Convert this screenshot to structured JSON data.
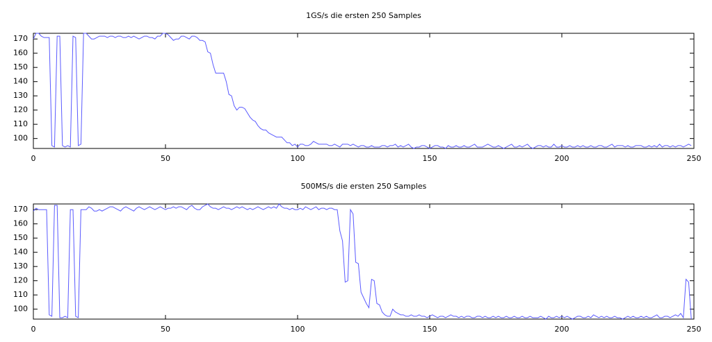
{
  "chart_data": [
    {
      "type": "line",
      "title": "1GS/s die ersten 250 Samples",
      "color": "#5a5aff",
      "xlim": [
        0,
        250
      ],
      "xticks": [
        0,
        50,
        100,
        150,
        200,
        250
      ],
      "ylim": [
        93,
        174
      ],
      "yticks": [
        100,
        110,
        120,
        130,
        140,
        150,
        160,
        170
      ],
      "x": [
        0,
        1,
        2,
        3,
        4,
        5,
        6,
        7,
        8,
        9,
        10,
        11,
        12,
        13,
        14,
        15,
        16,
        17,
        18,
        19,
        20,
        21,
        22,
        23,
        24,
        25,
        26,
        27,
        28,
        29,
        30,
        31,
        32,
        33,
        34,
        35,
        36,
        37,
        38,
        39,
        40,
        41,
        42,
        43,
        44,
        45,
        46,
        47,
        48,
        49,
        50,
        51,
        52,
        53,
        54,
        55,
        56,
        57,
        58,
        59,
        60,
        61,
        62,
        63,
        64,
        65,
        66,
        67,
        68,
        69,
        70,
        71,
        72,
        73,
        74,
        75,
        76,
        77,
        78,
        79,
        80,
        81,
        82,
        83,
        84,
        85,
        86,
        87,
        88,
        89,
        90,
        91,
        92,
        93,
        94,
        95,
        96,
        97,
        98,
        99,
        100,
        101,
        102,
        103,
        104,
        105,
        106,
        107,
        108,
        109,
        110,
        111,
        112,
        113,
        114,
        115,
        116,
        117,
        118,
        119,
        120,
        121,
        122,
        123,
        124,
        125,
        126,
        127,
        128,
        129,
        130,
        131,
        132,
        133,
        134,
        135,
        136,
        137,
        138,
        139,
        140,
        141,
        142,
        143,
        144,
        145,
        146,
        147,
        148,
        149,
        150,
        151,
        152,
        153,
        154,
        155,
        156,
        157,
        158,
        159,
        160,
        161,
        162,
        163,
        164,
        165,
        166,
        167,
        168,
        169,
        170,
        171,
        172,
        173,
        174,
        175,
        176,
        177,
        178,
        179,
        180,
        181,
        182,
        183,
        184,
        185,
        186,
        187,
        188,
        189,
        190,
        191,
        192,
        193,
        194,
        195,
        196,
        197,
        198,
        199,
        200,
        201,
        202,
        203,
        204,
        205,
        206,
        207,
        208,
        209,
        210,
        211,
        212,
        213,
        214,
        215,
        216,
        217,
        218,
        219,
        220,
        221,
        222,
        223,
        224,
        225,
        226,
        227,
        228,
        229,
        230,
        231,
        232,
        233,
        234,
        235,
        236,
        237,
        238,
        239,
        240,
        241,
        242,
        243,
        244,
        245,
        246,
        247,
        248,
        249
      ],
      "values": [
        170,
        174,
        174,
        172,
        171,
        171,
        171,
        95,
        94,
        172,
        172,
        95,
        94,
        95,
        94,
        172,
        171,
        95,
        96,
        174,
        174,
        172,
        170,
        170,
        171,
        172,
        172,
        172,
        171,
        172,
        172,
        171,
        172,
        172,
        171,
        171,
        172,
        171,
        172,
        171,
        170,
        171,
        172,
        172,
        171,
        171,
        170,
        172,
        172,
        174,
        174,
        173,
        171,
        169,
        170,
        170,
        172,
        172,
        171,
        170,
        172,
        172,
        171,
        169,
        169,
        168,
        161,
        160,
        152,
        146,
        146,
        146,
        146,
        140,
        131,
        130,
        123,
        120,
        122,
        122,
        121,
        118,
        115,
        113,
        112,
        109,
        107,
        106,
        106,
        104,
        103,
        102,
        101,
        101,
        101,
        99,
        97,
        97,
        95,
        96,
        94,
        96,
        96,
        95,
        95,
        96,
        98,
        97,
        96,
        96,
        96,
        96,
        95,
        95,
        96,
        95,
        94,
        96,
        96,
        96,
        95,
        96,
        95,
        94,
        95,
        95,
        94,
        94,
        95,
        94,
        94,
        94,
        95,
        95,
        94,
        95,
        95,
        96,
        94,
        95,
        94,
        95,
        96,
        94,
        93,
        94,
        94,
        95,
        95,
        94,
        93,
        94,
        95,
        95,
        94,
        94,
        93,
        95,
        94,
        94,
        95,
        94,
        94,
        95,
        94,
        94,
        95,
        96,
        94,
        94,
        94,
        95,
        96,
        95,
        94,
        94,
        95,
        94,
        93,
        94,
        95,
        96,
        94,
        94,
        95,
        94,
        95,
        96,
        94,
        93,
        94,
        95,
        95,
        94,
        95,
        94,
        94,
        96,
        94,
        94,
        95,
        94,
        94,
        95,
        94,
        94,
        95,
        94,
        95,
        94,
        94,
        95,
        94,
        94,
        95,
        95,
        94,
        94,
        95,
        96,
        94,
        95,
        95,
        95,
        94,
        95,
        94,
        94,
        95,
        95,
        95,
        94,
        94,
        95,
        94,
        95,
        94,
        96,
        94,
        95,
        95,
        94,
        95,
        94,
        95,
        95,
        94,
        95,
        96,
        95
      ]
    },
    {
      "type": "line",
      "title": "500MS/s die ersten 250 Samples",
      "color": "#5a5aff",
      "xlim": [
        0,
        250
      ],
      "xticks": [
        0,
        50,
        100,
        150,
        200,
        250
      ],
      "ylim": [
        93,
        174
      ],
      "yticks": [
        100,
        110,
        120,
        130,
        140,
        150,
        160,
        170
      ],
      "x": [
        0,
        1,
        2,
        3,
        4,
        5,
        6,
        7,
        8,
        9,
        10,
        11,
        12,
        13,
        14,
        15,
        16,
        17,
        18,
        19,
        20,
        21,
        22,
        23,
        24,
        25,
        26,
        27,
        28,
        29,
        30,
        31,
        32,
        33,
        34,
        35,
        36,
        37,
        38,
        39,
        40,
        41,
        42,
        43,
        44,
        45,
        46,
        47,
        48,
        49,
        50,
        51,
        52,
        53,
        54,
        55,
        56,
        57,
        58,
        59,
        60,
        61,
        62,
        63,
        64,
        65,
        66,
        67,
        68,
        69,
        70,
        71,
        72,
        73,
        74,
        75,
        76,
        77,
        78,
        79,
        80,
        81,
        82,
        83,
        84,
        85,
        86,
        87,
        88,
        89,
        90,
        91,
        92,
        93,
        94,
        95,
        96,
        97,
        98,
        99,
        100,
        101,
        102,
        103,
        104,
        105,
        106,
        107,
        108,
        109,
        110,
        111,
        112,
        113,
        114,
        115,
        116,
        117,
        118,
        119,
        120,
        121,
        122,
        123,
        124,
        125,
        126,
        127,
        128,
        129,
        130,
        131,
        132,
        133,
        134,
        135,
        136,
        137,
        138,
        139,
        140,
        141,
        142,
        143,
        144,
        145,
        146,
        147,
        148,
        149,
        150,
        151,
        152,
        153,
        154,
        155,
        156,
        157,
        158,
        159,
        160,
        161,
        162,
        163,
        164,
        165,
        166,
        167,
        168,
        169,
        170,
        171,
        172,
        173,
        174,
        175,
        176,
        177,
        178,
        179,
        180,
        181,
        182,
        183,
        184,
        185,
        186,
        187,
        188,
        189,
        190,
        191,
        192,
        193,
        194,
        195,
        196,
        197,
        198,
        199,
        200,
        201,
        202,
        203,
        204,
        205,
        206,
        207,
        208,
        209,
        210,
        211,
        212,
        213,
        214,
        215,
        216,
        217,
        218,
        219,
        220,
        221,
        222,
        223,
        224,
        225,
        226,
        227,
        228,
        229,
        230,
        231,
        232,
        233,
        234,
        235,
        236,
        237,
        238,
        239,
        240,
        241,
        242,
        243,
        244,
        245,
        246,
        247,
        248,
        249
      ],
      "values": [
        169,
        171,
        170,
        170,
        170,
        170,
        96,
        95,
        173,
        173,
        94,
        94,
        95,
        94,
        170,
        170,
        95,
        94,
        170,
        170,
        170,
        172,
        171,
        169,
        169,
        170,
        169,
        170,
        171,
        172,
        172,
        171,
        170,
        169,
        171,
        172,
        171,
        170,
        169,
        171,
        172,
        171,
        170,
        171,
        172,
        171,
        170,
        171,
        172,
        171,
        170,
        171,
        171,
        172,
        171,
        172,
        172,
        171,
        170,
        172,
        173,
        171,
        170,
        170,
        172,
        173,
        174,
        172,
        171,
        171,
        170,
        171,
        172,
        171,
        171,
        170,
        171,
        172,
        171,
        172,
        171,
        170,
        171,
        170,
        171,
        172,
        171,
        170,
        171,
        172,
        171,
        172,
        171,
        174,
        172,
        171,
        171,
        170,
        171,
        170,
        170,
        171,
        170,
        172,
        171,
        170,
        171,
        172,
        170,
        171,
        171,
        170,
        171,
        171,
        170,
        170,
        155,
        148,
        119,
        120,
        170,
        167,
        133,
        132,
        112,
        108,
        104,
        101,
        121,
        120,
        104,
        103,
        98,
        96,
        95,
        95,
        100,
        98,
        97,
        96,
        96,
        95,
        95,
        96,
        95,
        95,
        96,
        95,
        95,
        94,
        95,
        96,
        95,
        94,
        95,
        95,
        94,
        95,
        96,
        95,
        95,
        94,
        95,
        94,
        95,
        95,
        94,
        94,
        95,
        95,
        94,
        95,
        94,
        94,
        95,
        94,
        95,
        94,
        94,
        95,
        94,
        94,
        95,
        94,
        94,
        95,
        94,
        94,
        95,
        94,
        94,
        94,
        95,
        94,
        93,
        95,
        94,
        94,
        95,
        94,
        95,
        94,
        95,
        94,
        93,
        94,
        95,
        95,
        94,
        94,
        95,
        94,
        96,
        95,
        94,
        95,
        94,
        95,
        94,
        94,
        95,
        94,
        94,
        93,
        94,
        95,
        94,
        95,
        94,
        94,
        95,
        94,
        95,
        94,
        94,
        95,
        96,
        94,
        94,
        95,
        95,
        94,
        95,
        96,
        95,
        97,
        94,
        121,
        119,
        93
      ]
    }
  ]
}
